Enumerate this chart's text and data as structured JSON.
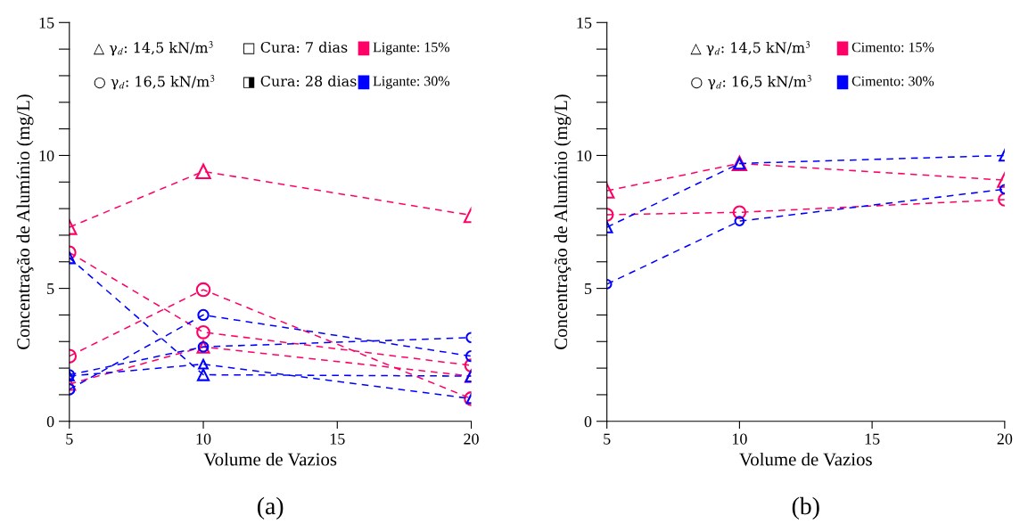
{
  "chart_data": [
    {
      "type": "line",
      "xlabel": "Volume de Vazios",
      "ylabel": "Concentração de Alumínio (mg/L)",
      "x": [
        5,
        10,
        20
      ],
      "xlim": [
        5,
        20
      ],
      "xticks": [
        5,
        10,
        15,
        20
      ],
      "ylim": [
        0,
        15
      ],
      "yticks": [
        0,
        {
          "value": 1,
          "label": null
        },
        {
          "value": 2,
          "label": null
        },
        {
          "value": 3,
          "label": null
        },
        {
          "value": 4,
          "label": null
        },
        5,
        {
          "value": 6,
          "label": null
        },
        {
          "value": 7,
          "label": null
        },
        {
          "value": 8,
          "label": null
        },
        {
          "value": 9,
          "label": null
        },
        10,
        {
          "value": 11,
          "label": null
        },
        {
          "value": 12,
          "label": null
        },
        {
          "value": 13,
          "label": null
        },
        {
          "value": 14,
          "label": null
        },
        15
      ],
      "line_style": "dashed",
      "grid": false,
      "series": [
        {
          "color": "#ff0066",
          "marker": "triangle",
          "values": [
            7.3,
            9.4,
            7.75
          ]
        },
        {
          "color": "#ff0066",
          "marker": "circle",
          "values": [
            2.45,
            4.95,
            0.85
          ]
        },
        {
          "color": "#ff0066",
          "marker": "circle",
          "values": [
            6.35,
            3.35,
            2.1
          ]
        },
        {
          "color": "#ff0066",
          "marker": "triangle",
          "values": [
            1.4,
            2.8,
            1.7
          ]
        },
        {
          "color": "#0000ff",
          "marker": "triangle",
          "values": [
            6.15,
            1.75,
            1.7
          ]
        },
        {
          "color": "#0000ff",
          "marker": "circle",
          "values": [
            1.2,
            4.0,
            2.45
          ]
        },
        {
          "color": "#0000ff",
          "marker": "circle",
          "values": [
            1.75,
            2.8,
            3.15
          ]
        },
        {
          "color": "#0000ff",
          "marker": "triangle",
          "values": [
            1.7,
            2.15,
            0.85
          ]
        }
      ],
      "annotations": [
        "△ γ$_{d}$: 14,5 kN/m$^{3}$",
        "□ Cura: 7 dias",
        "Ligante: 15%",
        "○ γ$_{d}$: 16,5 kN/m$^{3}$",
        "◨ Cura: 28 dias",
        "Ligante: 30%",
        "(a)"
      ]
    },
    {
      "type": "line",
      "xlabel": "Volume de Vazios",
      "ylabel": "Concentração de Alumínio (mg/L)",
      "x": [
        5,
        10,
        20
      ],
      "xlim": [
        5,
        20
      ],
      "xticks": [
        5,
        10,
        15,
        20
      ],
      "ylim": [
        0,
        15
      ],
      "yticks": [
        0,
        {
          "value": 1,
          "label": null
        },
        {
          "value": 2,
          "label": null
        },
        {
          "value": 3,
          "label": null
        },
        {
          "value": 4,
          "label": null
        },
        5,
        {
          "value": 6,
          "label": null
        },
        {
          "value": 7,
          "label": null
        },
        {
          "value": 8,
          "label": null
        },
        {
          "value": 9,
          "label": null
        },
        10,
        {
          "value": 11,
          "label": null
        },
        {
          "value": 12,
          "label": null
        },
        {
          "value": 13,
          "label": null
        },
        {
          "value": 14,
          "label": null
        },
        15
      ],
      "line_style": "dashed",
      "grid": false,
      "series": [
        {
          "color": "#ff0066",
          "marker": "triangle",
          "values": [
            8.67,
            9.7,
            9.07
          ]
        },
        {
          "color": "#ff0066",
          "marker": "circle",
          "values": [
            7.77,
            7.86,
            8.34
          ]
        },
        {
          "color": "#0000ff",
          "marker": "triangle",
          "values": [
            7.3,
            9.7,
            10.0
          ]
        },
        {
          "color": "#0000ff",
          "marker": "circle",
          "values": [
            5.16,
            7.53,
            8.73
          ]
        }
      ],
      "annotations": [
        "△ γ$_{d}$: 14,5 kN/m$^{3}$",
        "Cimento: 15%",
        "○ γ$_{d}$: 16,5 kN/m$^{3}$",
        "Cimento: 30%",
        "(b)"
      ]
    }
  ]
}
